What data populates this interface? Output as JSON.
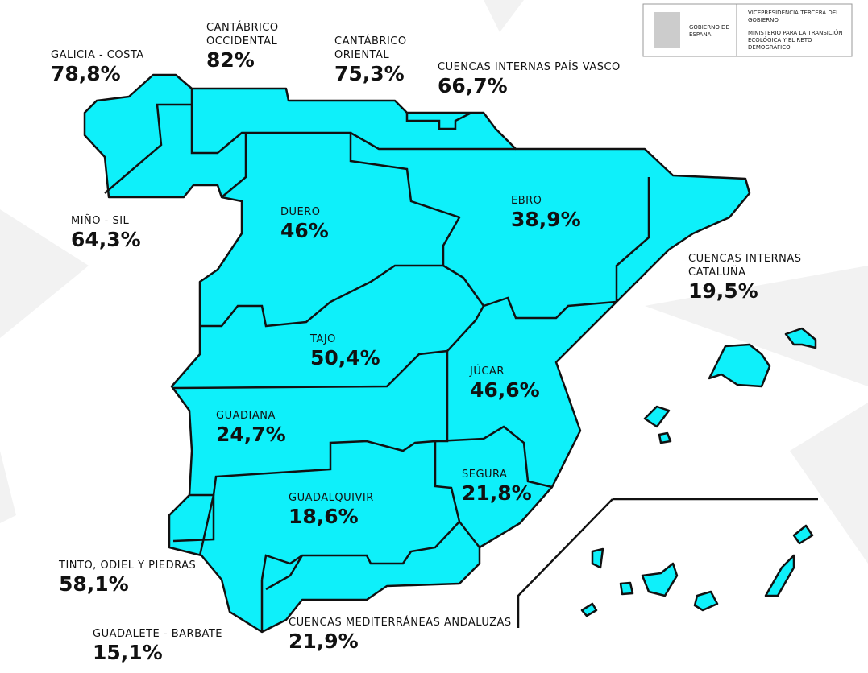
{
  "header": {
    "logo_left": "GOBIERNO DE ESPAÑA",
    "logo_right_1": "VICEPRESIDENCIA TERCERA DEL GOBIERNO",
    "logo_right_2": "MINISTERIO PARA LA TRANSICIÓN ECOLÓGICA Y EL RETO DEMOGRÁFICO"
  },
  "basins": [
    {
      "name": "GALICIA - COSTA",
      "value": "78,8%"
    },
    {
      "name": "CANTÁBRICO OCCIDENTAL",
      "value": "82%"
    },
    {
      "name": "CANTÁBRICO ORIENTAL",
      "value": "75,3%"
    },
    {
      "name": "CUENCAS INTERNAS PAÍS VASCO",
      "value": "66,7%"
    },
    {
      "name": "MIÑO - SIL",
      "value": "64,3%"
    },
    {
      "name": "DUERO",
      "value": "46%"
    },
    {
      "name": "EBRO",
      "value": "38,9%"
    },
    {
      "name": "CUENCAS INTERNAS CATALUÑA",
      "value": "19,5%"
    },
    {
      "name": "TAJO",
      "value": "50,4%"
    },
    {
      "name": "JÚCAR",
      "value": "46,6%"
    },
    {
      "name": "GUADIANA",
      "value": "24,7%"
    },
    {
      "name": "SEGURA",
      "value": "21,8%"
    },
    {
      "name": "GUADALQUIVIR",
      "value": "18,6%"
    },
    {
      "name": "TINTO, ODIEL Y PIEDRAS",
      "value": "58,1%"
    },
    {
      "name": "GUADALETE - BARBATE",
      "value": "15,1%"
    },
    {
      "name": "CUENCAS MEDITERRÁNEAS ANDALUZAS",
      "value": "21,9%"
    }
  ]
}
